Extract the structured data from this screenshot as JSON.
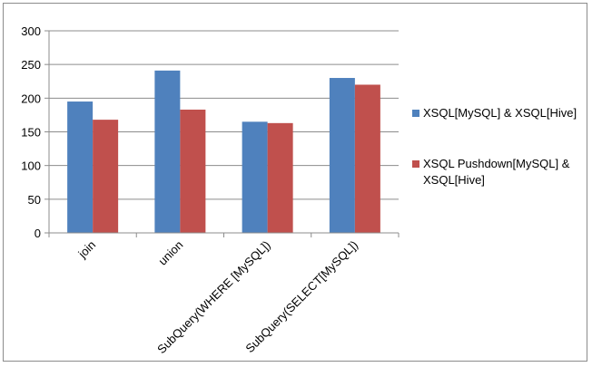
{
  "chart_data": {
    "type": "bar",
    "categories": [
      "join",
      "union",
      "SubQuery(WHERE [MySQL])",
      "SubQuery(SELECT[MySQL])"
    ],
    "series": [
      {
        "name": "XSQL[MySQL] & XSQL[Hive]",
        "values": [
          195,
          241,
          165,
          230
        ],
        "color": "#4f81bd"
      },
      {
        "name": "XSQL Pushdown[MySQL] & XSQL[Hive]",
        "values": [
          168,
          183,
          163,
          220
        ],
        "color": "#c0504d"
      }
    ],
    "ylim": [
      0,
      300
    ],
    "yticks": [
      0,
      50,
      100,
      150,
      200,
      250,
      300
    ],
    "grid": true,
    "legend_position": "right"
  }
}
